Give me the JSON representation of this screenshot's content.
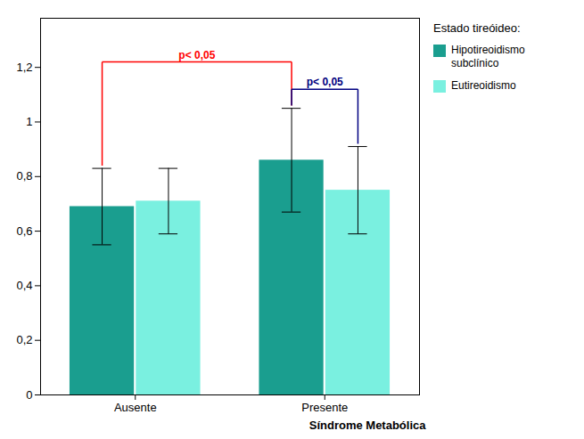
{
  "chart_data": {
    "type": "bar",
    "categories": [
      "Ausente",
      "Presente"
    ],
    "series": [
      {
        "name": "Hipotireoidismo\nsubclínico",
        "color": "#1a9e8f",
        "values": [
          0.69,
          0.86
        ],
        "errors": [
          0.14,
          0.19
        ]
      },
      {
        "name": "Eutireoidismo",
        "color": "#7af0e0",
        "values": [
          0.71,
          0.75
        ],
        "errors": [
          0.12,
          0.16
        ]
      }
    ],
    "xlabel": "Síndrome Metabólica",
    "legend_title": "Estado tireóideo:",
    "legend": "upper right",
    "grid": false,
    "ylim": [
      0,
      1.38
    ],
    "yticks": [
      0,
      {
        "value": 0.2,
        "label": "0,2"
      },
      {
        "value": 0.4,
        "label": "0,4"
      },
      {
        "value": 0.6,
        "label": "0,6"
      },
      {
        "value": 0.8,
        "label": "0,8"
      },
      1,
      {
        "value": 1.2,
        "label": "1,2"
      }
    ],
    "annotations": [
      {
        "text": "p< 0,05",
        "color": "red",
        "y": 1.22,
        "between": [
          {
            "category": "Ausente",
            "series": "Hipotireoidismo\nsubclínico"
          },
          {
            "category": "Presente",
            "series": "Hipotireoidismo\nsubclínico"
          }
        ]
      },
      {
        "text": "p< 0,05",
        "color": "navy",
        "y": 1.12,
        "between": [
          {
            "category": "Presente",
            "series": "Hipotireoidismo\nsubclínico"
          },
          {
            "category": "Presente",
            "series": "Eutireoidismo"
          }
        ]
      }
    ]
  }
}
